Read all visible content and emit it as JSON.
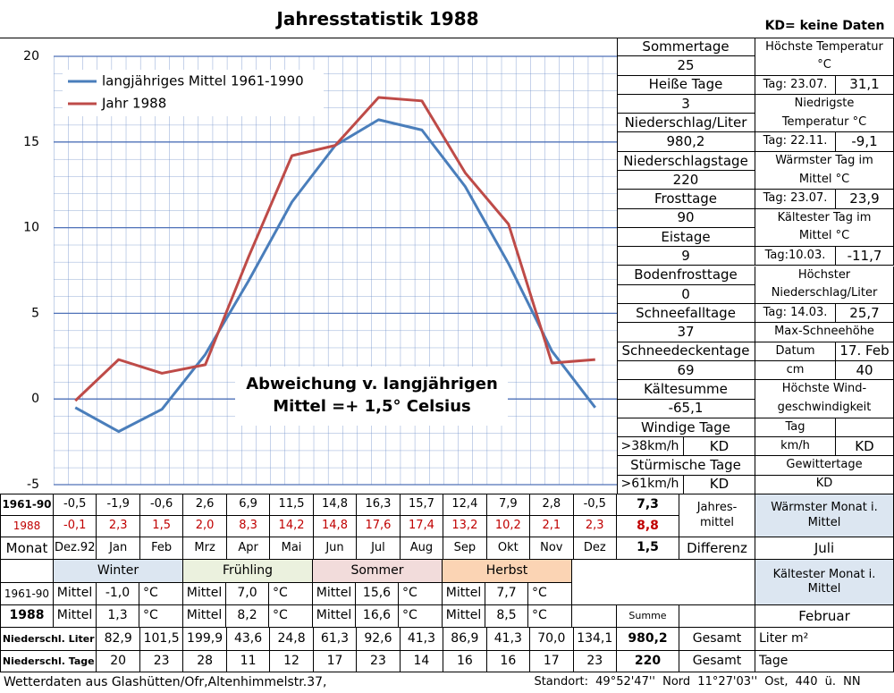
{
  "header": {
    "title": "Jahresstatistik 1988",
    "note": "KD= keine Daten"
  },
  "chart_data": {
    "type": "line",
    "categories": [
      "Dez.92",
      "Jan",
      "Feb",
      "Mrz",
      "Apr",
      "Mai",
      "Jun",
      "Jul",
      "Aug",
      "Sep",
      "Okt",
      "Nov",
      "Dez"
    ],
    "series": [
      {
        "name": "langjähriges Mittel 1961-1990",
        "color": "#4a7ebb",
        "values": [
          -0.5,
          -1.9,
          -0.6,
          2.6,
          6.9,
          11.5,
          14.8,
          16.3,
          15.7,
          12.4,
          7.9,
          2.8,
          -0.5
        ],
        "value_labels": [
          "-0,5",
          "-1,9",
          "-0,6",
          "2,6",
          "6,9",
          "11,5",
          "14,8",
          "16,3",
          "15,7",
          "12,4",
          "7,9",
          "2,8",
          "-0,5"
        ]
      },
      {
        "name": "Jahr 1988",
        "color": "#be4b48",
        "values": [
          -0.1,
          2.3,
          1.5,
          2.0,
          8.3,
          14.2,
          14.8,
          17.6,
          17.4,
          13.2,
          10.2,
          2.1,
          2.3
        ],
        "value_labels": [
          "-0,1",
          "2,3",
          "1,5",
          "2,0",
          "8,3",
          "14,2",
          "14,8",
          "17,6",
          "17,4",
          "13,2",
          "10,2",
          "2,1",
          "2,3"
        ]
      }
    ],
    "ylim": [
      -5,
      20
    ],
    "yticks": [
      -5,
      0,
      5,
      10,
      15,
      20
    ],
    "grid": true,
    "legend": "upper left",
    "annotation": [
      "Abweichung v. langjährigen",
      "Mittel =+ 1,5° Celsius"
    ]
  },
  "stats": {
    "left": [
      [
        "Sommertage"
      ],
      [
        "25"
      ],
      [
        "Heiße Tage"
      ],
      [
        "3"
      ],
      [
        "Niederschlag/Liter"
      ],
      [
        "980,2"
      ],
      [
        "Niederschlagstage"
      ],
      [
        "220"
      ],
      [
        "Frosttage"
      ],
      [
        "90"
      ],
      [
        "Eistage"
      ],
      [
        "9"
      ],
      [
        "Bodenfrosttage"
      ],
      [
        "0"
      ],
      [
        "Schneefalltage"
      ],
      [
        "37"
      ],
      [
        "Schneedeckentage"
      ],
      [
        "69"
      ],
      [
        "Kältesumme"
      ],
      [
        "-65,1"
      ],
      [
        "Windige Tage"
      ],
      [
        ">38km/h",
        "KD"
      ],
      [
        "Stürmische Tage"
      ],
      [
        ">61km/h",
        "KD"
      ]
    ],
    "right": [
      [
        "Höchste Temperatur °C"
      ],
      [
        "Tag: 23.07.",
        "31,1"
      ],
      [
        "Niedrigste Temperatur °C"
      ],
      [
        "Tag: 22.11.",
        "-9,1"
      ],
      [
        "Wärmster Tag im Mittel °C"
      ],
      [
        "Tag: 23.07.",
        "23,9"
      ],
      [
        "Kältester Tag im Mittel °C"
      ],
      [
        "Tag:10.03.",
        "-11,7"
      ],
      [
        "Höchster Niederschlag/Liter"
      ],
      [
        "Tag: 14.03.",
        "25,7"
      ],
      [
        "Max-Schneehöhe"
      ],
      [
        "Datum",
        "17. Feb"
      ],
      [
        "cm",
        "40"
      ],
      [
        "Höchste Wind-geschwindigkeit"
      ],
      [
        "Tag"
      ],
      [
        "km/h",
        "KD"
      ],
      [
        "Gewittertage"
      ],
      [
        "KD"
      ]
    ]
  },
  "table": {
    "row_labels": [
      "1961-90",
      "1988",
      "Monat"
    ],
    "yearly": [
      "7,3",
      "8,8",
      "1,5"
    ],
    "yearly_label": [
      "Jahres-",
      "mittel"
    ],
    "difference_label": "Differenz",
    "warmest_label": "Wärmster Monat i. Mittel",
    "warmest": "Juli",
    "coldest_label": "Kältester Monat i. Mittel",
    "coldest": "Februar",
    "season_row_labels": [
      "1961-90",
      "1988"
    ],
    "seasons": [
      {
        "name": "Winter",
        "rows": [
          [
            "Mittel",
            "-1,0",
            "°C"
          ],
          [
            "Mittel",
            "1,3",
            "°C"
          ]
        ]
      },
      {
        "name": "Frühling",
        "rows": [
          [
            "Mittel",
            "7,0",
            "°C"
          ],
          [
            "Mittel",
            "8,2",
            "°C"
          ]
        ]
      },
      {
        "name": "Sommer",
        "rows": [
          [
            "Mittel",
            "15,6",
            "°C"
          ],
          [
            "Mittel",
            "16,6",
            "°C"
          ]
        ]
      },
      {
        "name": "Herbst",
        "rows": [
          [
            "Mittel",
            "7,7",
            "°C"
          ],
          [
            "Mittel",
            "8,5",
            "°C"
          ]
        ]
      }
    ],
    "sum_label": "Summe",
    "precip": {
      "label": "Niederschl. Liter",
      "values": [
        "82,9",
        "101,5",
        "199,9",
        "43,6",
        "24,8",
        "61,3",
        "92,6",
        "41,3",
        "86,9",
        "41,3",
        "70,0",
        "134,1"
      ],
      "total": "980,2",
      "total_label": "Gesamt",
      "unit": "Liter m²"
    },
    "days": {
      "label": "Niederschl. Tage",
      "values": [
        "20",
        "23",
        "28",
        "11",
        "12",
        "17",
        "23",
        "14",
        "16",
        "16",
        "17",
        "23"
      ],
      "total": "220",
      "total_label": "Gesamt",
      "unit": "Tage"
    }
  },
  "footer": {
    "left": "Wetterdaten aus Glashütten/Ofr,Altenhimmelstr.37,",
    "right": "Standort: 49°52'47'' Nord 11°27'03'' Ost, 440 ü. NN"
  }
}
